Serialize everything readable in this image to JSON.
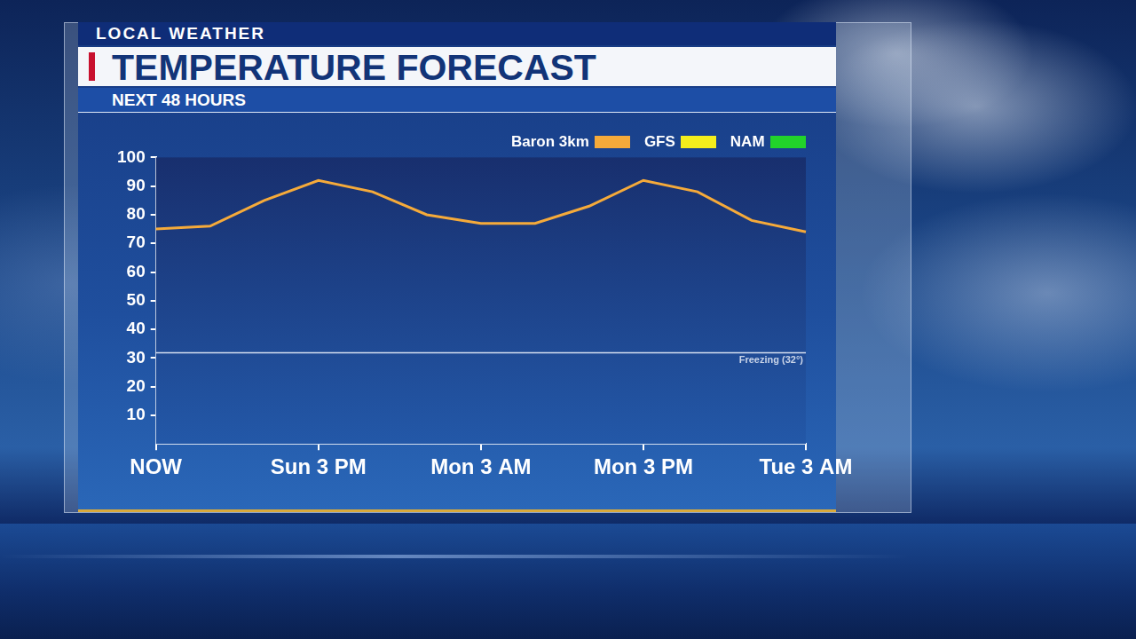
{
  "chart_data": {
    "type": "line",
    "supertitle": "LOCAL WEATHER",
    "title": "TEMPERATURE FORECAST",
    "subtitle": "NEXT 48 HOURS",
    "categories": [
      "NOW",
      null,
      null,
      "Sun 3 PM",
      null,
      null,
      "Mon 3 AM",
      null,
      null,
      "Mon 3 PM",
      null,
      null,
      "Tue 3 AM"
    ],
    "series": [
      {
        "name": "Baron 3km",
        "color": "#f5a a3a",
        "values": [
          75,
          76,
          85,
          92,
          88,
          80,
          77,
          77,
          83,
          92,
          88,
          78,
          74
        ]
      },
      {
        "name": "GFS",
        "color": "#f4ee1c",
        "values": [
          null,
          null,
          null,
          null,
          null,
          null,
          null,
          null,
          null,
          null,
          null,
          null,
          null
        ]
      },
      {
        "name": "NAM",
        "color": "#22d32a",
        "values": [
          null,
          null,
          null,
          null,
          null,
          null,
          null,
          null,
          null,
          null,
          null,
          null,
          null
        ]
      }
    ],
    "ylim": [
      0,
      100
    ],
    "yticks": [
      10,
      20,
      30,
      40,
      50,
      60,
      70,
      80,
      90,
      100
    ],
    "annotations": [
      {
        "value": 32,
        "label": "Freezing (32°)"
      }
    ],
    "grid": false,
    "legend": "top"
  }
}
